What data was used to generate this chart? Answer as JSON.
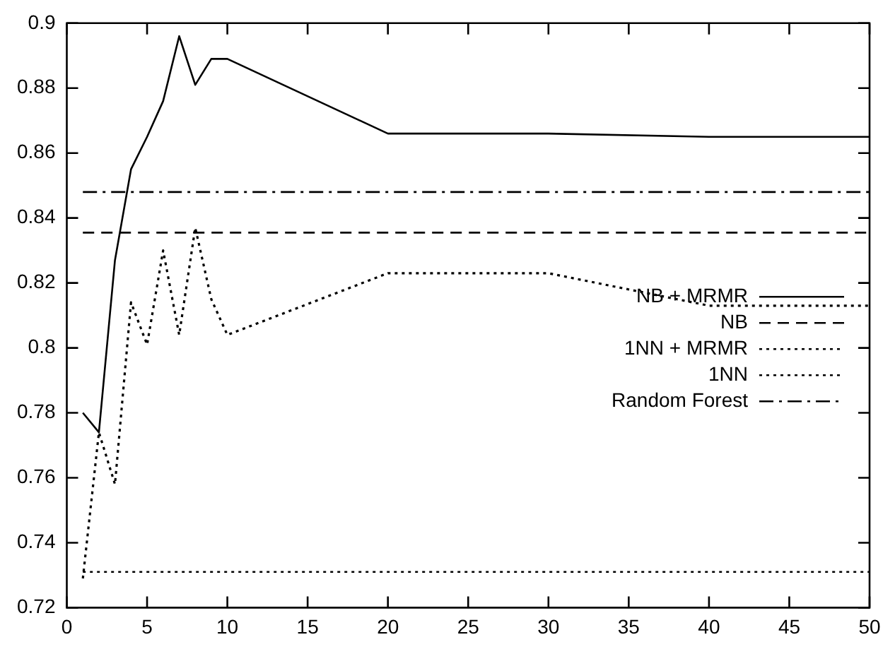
{
  "chart_data": {
    "type": "line",
    "xlim": [
      0,
      50
    ],
    "xticks": [
      0,
      5,
      10,
      15,
      20,
      25,
      30,
      35,
      40,
      45,
      50
    ],
    "ylim": [
      0.72,
      0.9
    ],
    "yticks": [
      0.72,
      0.74,
      0.76,
      0.78,
      0.8,
      0.82,
      0.84,
      0.86,
      0.88,
      0.9
    ],
    "grid": false,
    "legend": "right",
    "marker": "none",
    "series": [
      {
        "name": "NB + MRMR",
        "color": "#000000",
        "line_style": "solid",
        "x": [
          1,
          2,
          3,
          4,
          5,
          6,
          7,
          8,
          9,
          10,
          20,
          30,
          40,
          50
        ],
        "values": [
          0.78,
          0.774,
          0.827,
          0.855,
          0.865,
          0.876,
          0.896,
          0.881,
          0.889,
          0.889,
          0.866,
          0.866,
          0.865,
          0.865
        ]
      },
      {
        "name": "NB",
        "color": "#000000",
        "line_style": "dashed",
        "x": [
          1,
          50
        ],
        "values": [
          0.8355,
          0.8355
        ]
      },
      {
        "name": "1NN + MRMR",
        "color": "#000000",
        "line_style": "dotted",
        "x": [
          1,
          2,
          3,
          4,
          5,
          6,
          7,
          8,
          9,
          10,
          20,
          30,
          40,
          50
        ],
        "values": [
          0.729,
          0.774,
          0.758,
          0.814,
          0.801,
          0.83,
          0.804,
          0.837,
          0.815,
          0.804,
          0.823,
          0.823,
          0.813,
          0.813
        ]
      },
      {
        "name": "1NN",
        "color": "#000000",
        "line_style": "dotted",
        "x": [
          1,
          50
        ],
        "values": [
          0.731,
          0.731
        ]
      },
      {
        "name": "Random Forest",
        "color": "#000000",
        "line_style": "dashdot",
        "x": [
          1,
          50
        ],
        "values": [
          0.848,
          0.848
        ]
      }
    ]
  }
}
